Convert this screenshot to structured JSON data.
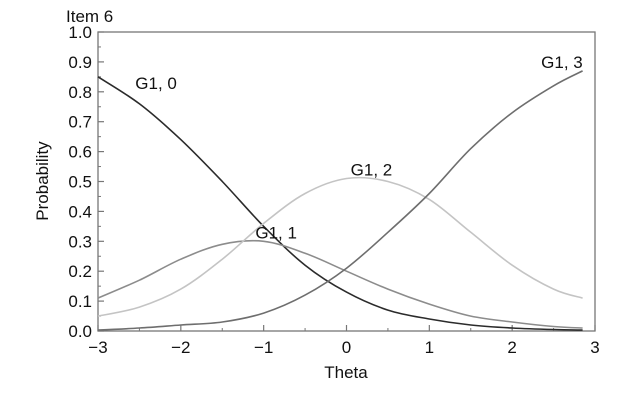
{
  "chart_data": {
    "type": "line",
    "title": "Item 6",
    "xlabel": "Theta",
    "ylabel": "Probability",
    "xlim": [
      -3,
      3
    ],
    "ylim": [
      0,
      1.0
    ],
    "xticks": [
      "−3",
      "−2",
      "−1",
      "0",
      "1",
      "2",
      "3"
    ],
    "yticks": [
      "0.0",
      "0.1",
      "0.2",
      "0.3",
      "0.4",
      "0.5",
      "0.6",
      "0.7",
      "0.8",
      "0.9",
      "1.0"
    ],
    "grid": false,
    "series": [
      {
        "name": "G1, 0",
        "color": "#2b2b2b",
        "x": [
          -3,
          -2.5,
          -2,
          -1.5,
          -1,
          -0.5,
          0,
          0.5,
          1,
          1.5,
          2,
          2.5,
          2.85
        ],
        "y": [
          0.85,
          0.76,
          0.64,
          0.5,
          0.35,
          0.22,
          0.13,
          0.07,
          0.04,
          0.02,
          0.01,
          0.005,
          0.003
        ]
      },
      {
        "name": "G1, 1",
        "color": "#8c8c8c",
        "x": [
          -3,
          -2.5,
          -2,
          -1.5,
          -1,
          -0.5,
          0,
          0.5,
          1,
          1.5,
          2,
          2.5,
          2.85
        ],
        "y": [
          0.11,
          0.17,
          0.24,
          0.29,
          0.3,
          0.26,
          0.2,
          0.14,
          0.09,
          0.05,
          0.03,
          0.015,
          0.01
        ]
      },
      {
        "name": "G1, 2",
        "color": "#c4c4c4",
        "x": [
          -3,
          -2.5,
          -2,
          -1.5,
          -1,
          -0.5,
          0,
          0.5,
          1,
          1.5,
          2,
          2.5,
          2.85
        ],
        "y": [
          0.05,
          0.08,
          0.14,
          0.24,
          0.36,
          0.46,
          0.51,
          0.5,
          0.44,
          0.33,
          0.22,
          0.14,
          0.11
        ]
      },
      {
        "name": "G1, 3",
        "color": "#6e6e6e",
        "x": [
          -3,
          -2.5,
          -2,
          -1.5,
          -1,
          -0.5,
          0,
          0.5,
          1,
          1.5,
          2,
          2.5,
          2.85
        ],
        "y": [
          0.003,
          0.01,
          0.02,
          0.03,
          0.06,
          0.12,
          0.21,
          0.33,
          0.46,
          0.61,
          0.73,
          0.82,
          0.87
        ]
      }
    ],
    "annotations": [
      {
        "text": "G1, 0",
        "x": -2.55,
        "y": 0.81
      },
      {
        "text": "G1, 1",
        "x": -1.1,
        "y": 0.31
      },
      {
        "text": "G1, 2",
        "x": 0.05,
        "y": 0.52
      },
      {
        "text": "G1, 3",
        "x": 2.35,
        "y": 0.88
      }
    ]
  }
}
